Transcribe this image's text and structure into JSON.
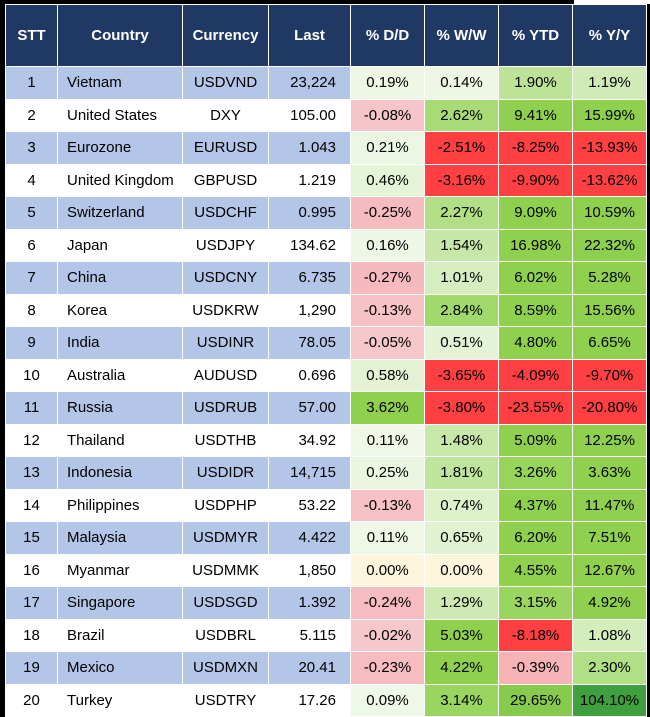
{
  "chart_data": {
    "type": "table",
    "title": "",
    "columns": [
      "STT",
      "Country",
      "Currency",
      "Last",
      "% D/D",
      "% W/W",
      "% YTD",
      "% Y/Y"
    ],
    "rows": [
      [
        "1",
        "Vietnam",
        "USDVND",
        "23,224",
        "0.19%",
        "0.14%",
        "1.90%",
        "1.19%"
      ],
      [
        "2",
        "United States",
        "DXY",
        "105.00",
        "-0.08%",
        "2.62%",
        "9.41%",
        "15.99%"
      ],
      [
        "3",
        "Eurozone",
        "EURUSD",
        "1.043",
        "0.21%",
        "-2.51%",
        "-8.25%",
        "-13.93%"
      ],
      [
        "4",
        "United Kingdom",
        "GBPUSD",
        "1.219",
        "0.46%",
        "-3.16%",
        "-9.90%",
        "-13.62%"
      ],
      [
        "5",
        "Switzerland",
        "USDCHF",
        "0.995",
        "-0.25%",
        "2.27%",
        "9.09%",
        "10.59%"
      ],
      [
        "6",
        "Japan",
        "USDJPY",
        "134.62",
        "0.16%",
        "1.54%",
        "16.98%",
        "22.32%"
      ],
      [
        "7",
        "China",
        "USDCNY",
        "6.735",
        "-0.27%",
        "1.01%",
        "6.02%",
        "5.28%"
      ],
      [
        "8",
        "Korea",
        "USDKRW",
        "1,290",
        "-0.13%",
        "2.84%",
        "8.59%",
        "15.56%"
      ],
      [
        "9",
        "India",
        "USDINR",
        "78.05",
        "-0.05%",
        "0.51%",
        "4.80%",
        "6.65%"
      ],
      [
        "10",
        "Australia",
        "AUDUSD",
        "0.696",
        "0.58%",
        "-3.65%",
        "-4.09%",
        "-9.70%"
      ],
      [
        "11",
        "Russia",
        "USDRUB",
        "57.00",
        "3.62%",
        "-3.80%",
        "-23.55%",
        "-20.80%"
      ],
      [
        "12",
        "Thailand",
        "USDTHB",
        "34.92",
        "0.11%",
        "1.48%",
        "5.09%",
        "12.25%"
      ],
      [
        "13",
        "Indonesia",
        "USDIDR",
        "14,715",
        "0.25%",
        "1.81%",
        "3.26%",
        "3.63%"
      ],
      [
        "14",
        "Philippines",
        "USDPHP",
        "53.22",
        "-0.13%",
        "0.74%",
        "4.37%",
        "11.47%"
      ],
      [
        "15",
        "Malaysia",
        "USDMYR",
        "4.422",
        "0.11%",
        "0.65%",
        "6.20%",
        "7.51%"
      ],
      [
        "16",
        "Myanmar",
        "USDMMK",
        "1,850",
        "0.00%",
        "0.00%",
        "4.55%",
        "12.67%"
      ],
      [
        "17",
        "Singapore",
        "USDSGD",
        "1.392",
        "-0.24%",
        "1.29%",
        "3.15%",
        "4.92%"
      ],
      [
        "18",
        "Brazil",
        "USDBRL",
        "5.115",
        "-0.02%",
        "5.03%",
        "-8.18%",
        "1.08%"
      ],
      [
        "19",
        "Mexico",
        "USDMXN",
        "20.41",
        "-0.23%",
        "4.22%",
        "-0.39%",
        "2.30%"
      ],
      [
        "20",
        "Turkey",
        "USDTRY",
        "17.26",
        "0.09%",
        "3.14%",
        "29.65%",
        "104.10%"
      ]
    ]
  },
  "colors": {
    "frame": "#000000",
    "header_bg": "#1F3864",
    "header_text": "#FFFFFF",
    "stripe_blue": "#B4C6E7",
    "row_white": "#FFFFFF",
    "grid_line": "#FFFFFF",
    "text": "#000000",
    "heat": {
      "pos_low": "#F2F9EC",
      "pos_high": "#8FD14F",
      "pos_dark": "#3F9E3F",
      "neg_low": "#F5C9CD",
      "neg_high": "#FF4043",
      "zero": "#FDF5DC",
      "pos_sat": 3.5,
      "neg_sat": 2.5,
      "dark_start": 20,
      "dark_span": 85
    }
  }
}
